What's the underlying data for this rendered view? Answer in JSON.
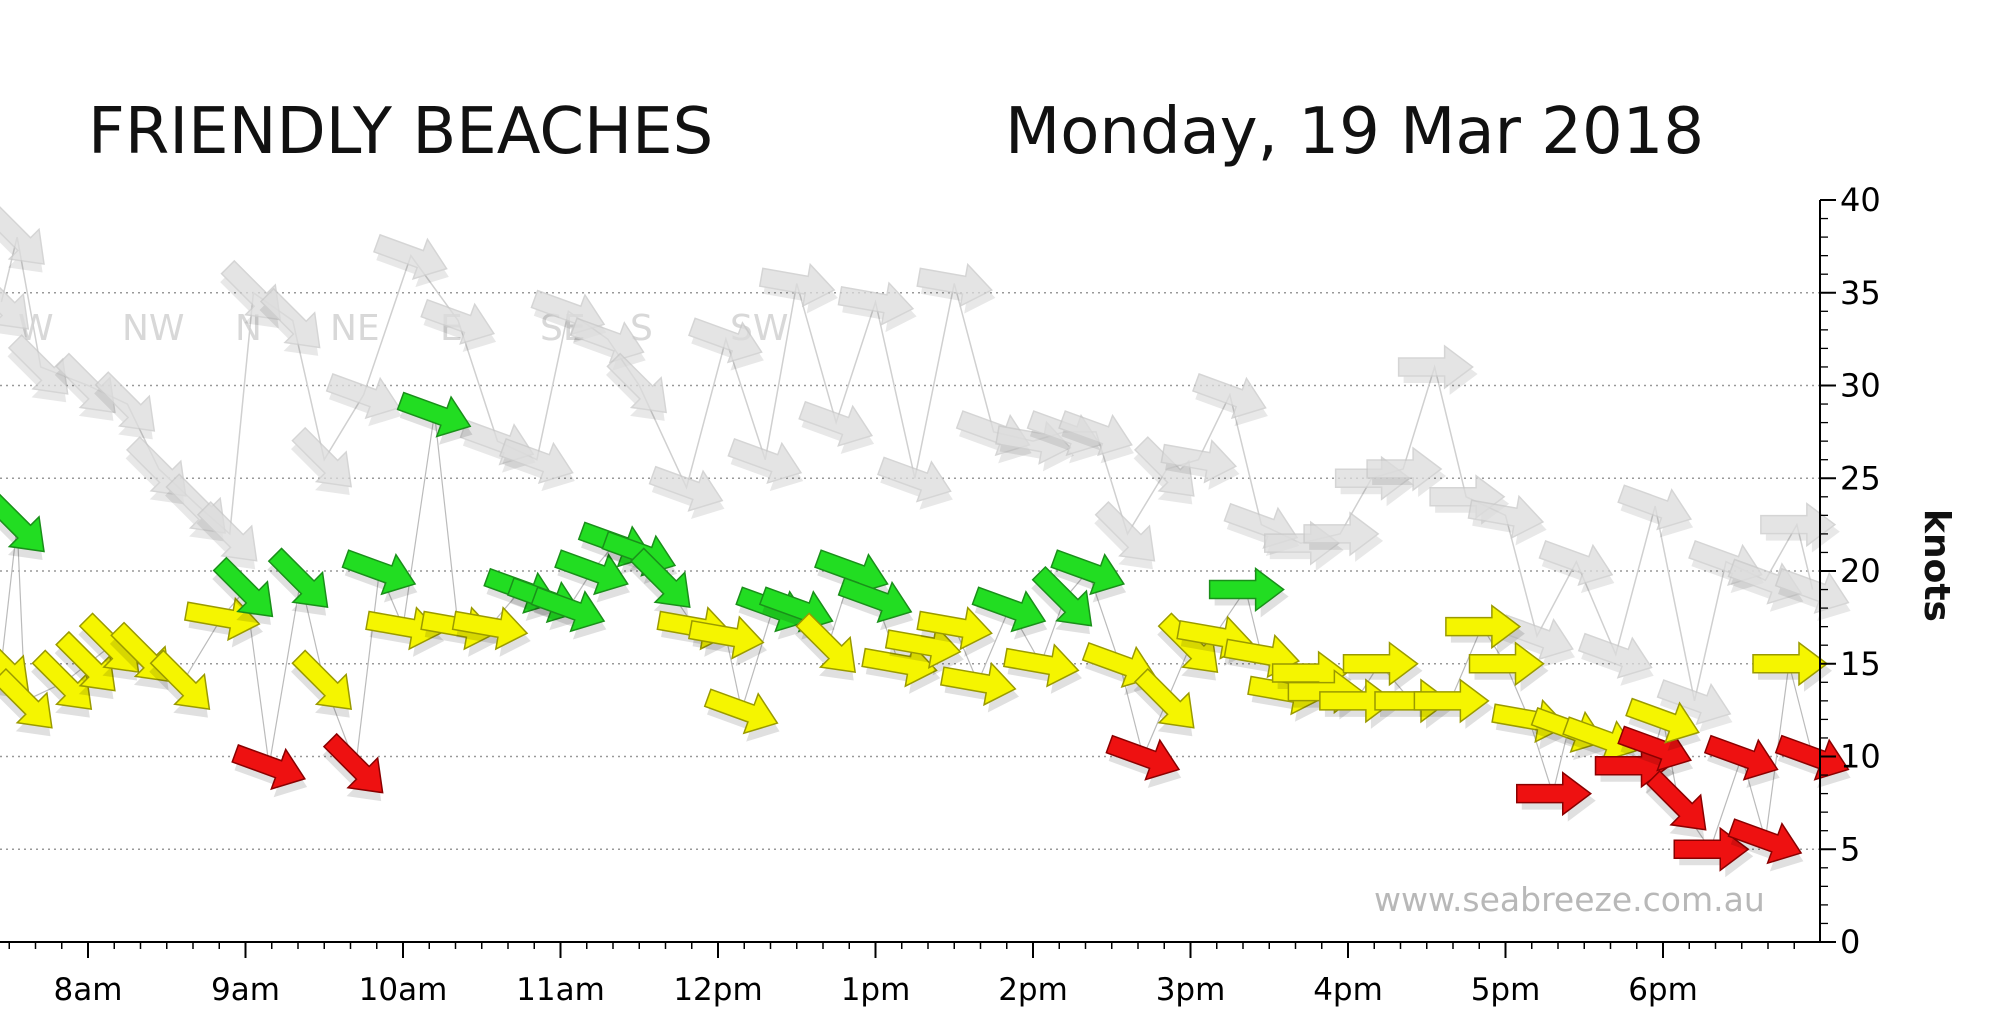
{
  "chart_data": {
    "type": "scatter",
    "title": "FRIENDLY BEACHES",
    "subtitle": "Monday, 19 Mar 2018",
    "ylabel": "knots",
    "xlabel": "",
    "watermark": "www.seabreeze.com.au",
    "ylim": [
      0,
      40
    ],
    "yticks": [
      0,
      5,
      10,
      15,
      20,
      25,
      30,
      35,
      40
    ],
    "y_axis_position": "right",
    "grid": true,
    "x_tick_labels": [
      "8am",
      "9am",
      "10am",
      "11am",
      "12pm",
      "1pm",
      "2pm",
      "3pm",
      "4pm",
      "5pm",
      "6pm"
    ],
    "x_tick_hours": [
      8,
      9,
      10,
      11,
      12,
      13,
      14,
      15,
      16,
      17,
      18
    ],
    "xlim_hours": [
      7.45,
      19.0
    ],
    "compass_labels": [
      "W",
      "NW",
      "N",
      "NE",
      "E",
      "SE",
      "S",
      "SW"
    ],
    "colors": {
      "green": "#22dd22",
      "yellow": "#f5f500",
      "red": "#ee1111",
      "gust": "#dcdcdc",
      "grid": "#999999"
    },
    "series": [
      {
        "name": "",
        "kind": "wind",
        "points": [
          {
            "t": 7.45,
            "v": 15.0,
            "dir": 135,
            "color": "yellow"
          },
          {
            "t": 7.55,
            "v": 22.5,
            "dir": 135,
            "color": "green"
          },
          {
            "t": 7.6,
            "v": 13.0,
            "dir": 135,
            "color": "yellow"
          },
          {
            "t": 7.85,
            "v": 14.0,
            "dir": 135,
            "color": "yellow"
          },
          {
            "t": 8.0,
            "v": 15.0,
            "dir": 135,
            "color": "yellow"
          },
          {
            "t": 8.15,
            "v": 16.0,
            "dir": 135,
            "color": "yellow"
          },
          {
            "t": 8.35,
            "v": 15.5,
            "dir": 135,
            "color": "yellow"
          },
          {
            "t": 8.6,
            "v": 14.0,
            "dir": 135,
            "color": "yellow"
          },
          {
            "t": 8.85,
            "v": 17.5,
            "dir": 100,
            "color": "yellow"
          },
          {
            "t": 9.0,
            "v": 19.0,
            "dir": 135,
            "color": "green"
          },
          {
            "t": 9.15,
            "v": 9.5,
            "dir": 110,
            "color": "red"
          },
          {
            "t": 9.35,
            "v": 19.5,
            "dir": 135,
            "color": "green"
          },
          {
            "t": 9.5,
            "v": 14.0,
            "dir": 135,
            "color": "yellow"
          },
          {
            "t": 9.7,
            "v": 9.5,
            "dir": 135,
            "color": "red"
          },
          {
            "t": 9.85,
            "v": 20.0,
            "dir": 110,
            "color": "green"
          },
          {
            "t": 10.0,
            "v": 17.0,
            "dir": 100,
            "color": "yellow"
          },
          {
            "t": 10.2,
            "v": 28.5,
            "dir": 110,
            "color": "green"
          },
          {
            "t": 10.35,
            "v": 17.0,
            "dir": 100,
            "color": "yellow"
          },
          {
            "t": 10.55,
            "v": 17.0,
            "dir": 100,
            "color": "yellow"
          },
          {
            "t": 10.75,
            "v": 19.0,
            "dir": 110,
            "color": "green"
          },
          {
            "t": 10.9,
            "v": 18.5,
            "dir": 110,
            "color": "green"
          },
          {
            "t": 11.05,
            "v": 18.0,
            "dir": 110,
            "color": "green"
          },
          {
            "t": 11.2,
            "v": 20.0,
            "dir": 110,
            "color": "green"
          },
          {
            "t": 11.35,
            "v": 21.5,
            "dir": 110,
            "color": "green"
          },
          {
            "t": 11.5,
            "v": 21.0,
            "dir": 110,
            "color": "green"
          },
          {
            "t": 11.65,
            "v": 19.5,
            "dir": 135,
            "color": "green"
          },
          {
            "t": 11.85,
            "v": 17.0,
            "dir": 100,
            "color": "yellow"
          },
          {
            "t": 12.05,
            "v": 16.5,
            "dir": 100,
            "color": "yellow"
          },
          {
            "t": 12.15,
            "v": 12.5,
            "dir": 110,
            "color": "yellow"
          },
          {
            "t": 12.35,
            "v": 18.0,
            "dir": 110,
            "color": "green"
          },
          {
            "t": 12.5,
            "v": 18.0,
            "dir": 110,
            "color": "green"
          },
          {
            "t": 12.7,
            "v": 16.0,
            "dir": 135,
            "color": "yellow"
          },
          {
            "t": 12.85,
            "v": 20.0,
            "dir": 110,
            "color": "green"
          },
          {
            "t": 13.0,
            "v": 18.5,
            "dir": 110,
            "color": "green"
          },
          {
            "t": 13.15,
            "v": 15.0,
            "dir": 100,
            "color": "yellow"
          },
          {
            "t": 13.3,
            "v": 16.0,
            "dir": 100,
            "color": "yellow"
          },
          {
            "t": 13.5,
            "v": 17.0,
            "dir": 100,
            "color": "yellow"
          },
          {
            "t": 13.65,
            "v": 14.0,
            "dir": 100,
            "color": "yellow"
          },
          {
            "t": 13.85,
            "v": 18.0,
            "dir": 110,
            "color": "green"
          },
          {
            "t": 14.05,
            "v": 15.0,
            "dir": 100,
            "color": "yellow"
          },
          {
            "t": 14.2,
            "v": 18.5,
            "dir": 135,
            "color": "green"
          },
          {
            "t": 14.35,
            "v": 20.0,
            "dir": 110,
            "color": "green"
          },
          {
            "t": 14.55,
            "v": 15.0,
            "dir": 110,
            "color": "yellow"
          },
          {
            "t": 14.7,
            "v": 10.0,
            "dir": 110,
            "color": "red"
          },
          {
            "t": 14.85,
            "v": 13.0,
            "dir": 135,
            "color": "yellow"
          },
          {
            "t": 15.0,
            "v": 16.0,
            "dir": 135,
            "color": "yellow"
          },
          {
            "t": 15.15,
            "v": 16.5,
            "dir": 100,
            "color": "yellow"
          },
          {
            "t": 15.35,
            "v": 19.0,
            "dir": 90,
            "color": "green"
          },
          {
            "t": 15.45,
            "v": 15.5,
            "dir": 100,
            "color": "yellow"
          },
          {
            "t": 15.6,
            "v": 13.5,
            "dir": 100,
            "color": "yellow"
          },
          {
            "t": 15.75,
            "v": 14.5,
            "dir": 90,
            "color": "yellow"
          },
          {
            "t": 15.85,
            "v": 13.5,
            "dir": 90,
            "color": "yellow"
          },
          {
            "t": 16.05,
            "v": 13.0,
            "dir": 90,
            "color": "yellow"
          },
          {
            "t": 16.2,
            "v": 15.0,
            "dir": 90,
            "color": "yellow"
          },
          {
            "t": 16.4,
            "v": 13.0,
            "dir": 90,
            "color": "yellow"
          },
          {
            "t": 16.65,
            "v": 13.0,
            "dir": 90,
            "color": "yellow"
          },
          {
            "t": 16.85,
            "v": 17.0,
            "dir": 90,
            "color": "yellow"
          },
          {
            "t": 17.0,
            "v": 15.0,
            "dir": 90,
            "color": "yellow"
          },
          {
            "t": 17.15,
            "v": 12.0,
            "dir": 100,
            "color": "yellow"
          },
          {
            "t": 17.3,
            "v": 8.0,
            "dir": 90,
            "color": "red"
          },
          {
            "t": 17.4,
            "v": 11.5,
            "dir": 110,
            "color": "yellow"
          },
          {
            "t": 17.6,
            "v": 11.0,
            "dir": 110,
            "color": "yellow"
          },
          {
            "t": 17.8,
            "v": 9.5,
            "dir": 90,
            "color": "red"
          },
          {
            "t": 17.95,
            "v": 10.5,
            "dir": 110,
            "color": "red"
          },
          {
            "t": 18.0,
            "v": 12.0,
            "dir": 110,
            "color": "yellow"
          },
          {
            "t": 18.1,
            "v": 7.5,
            "dir": 135,
            "color": "red"
          },
          {
            "t": 18.3,
            "v": 5.0,
            "dir": 90,
            "color": "red"
          },
          {
            "t": 18.5,
            "v": 10.0,
            "dir": 110,
            "color": "red"
          },
          {
            "t": 18.65,
            "v": 5.5,
            "dir": 110,
            "color": "red"
          },
          {
            "t": 18.8,
            "v": 15.0,
            "dir": 90,
            "color": "yellow"
          },
          {
            "t": 18.95,
            "v": 10.0,
            "dir": 110,
            "color": "red"
          }
        ]
      },
      {
        "name": "",
        "kind": "gust",
        "points": [
          {
            "t": 7.45,
            "v": 34.5,
            "dir": 135
          },
          {
            "t": 7.55,
            "v": 38.0,
            "dir": 135
          },
          {
            "t": 7.7,
            "v": 31.0,
            "dir": 135
          },
          {
            "t": 8.0,
            "v": 30.0,
            "dir": 135
          },
          {
            "t": 8.25,
            "v": 29.0,
            "dir": 135
          },
          {
            "t": 8.45,
            "v": 25.5,
            "dir": 135
          },
          {
            "t": 8.7,
            "v": 23.5,
            "dir": 135
          },
          {
            "t": 8.9,
            "v": 22.0,
            "dir": 135
          },
          {
            "t": 9.05,
            "v": 35.0,
            "dir": 135
          },
          {
            "t": 9.3,
            "v": 33.5,
            "dir": 135
          },
          {
            "t": 9.5,
            "v": 26.0,
            "dir": 135
          },
          {
            "t": 9.75,
            "v": 29.5,
            "dir": 110
          },
          {
            "t": 10.05,
            "v": 37.0,
            "dir": 110
          },
          {
            "t": 10.35,
            "v": 33.5,
            "dir": 110
          },
          {
            "t": 10.6,
            "v": 27.0,
            "dir": 110
          },
          {
            "t": 10.85,
            "v": 26.0,
            "dir": 110
          },
          {
            "t": 11.05,
            "v": 34.0,
            "dir": 110
          },
          {
            "t": 11.3,
            "v": 32.5,
            "dir": 110
          },
          {
            "t": 11.5,
            "v": 30.0,
            "dir": 135
          },
          {
            "t": 11.8,
            "v": 24.5,
            "dir": 110
          },
          {
            "t": 12.05,
            "v": 32.5,
            "dir": 110
          },
          {
            "t": 12.3,
            "v": 26.0,
            "dir": 110
          },
          {
            "t": 12.5,
            "v": 35.5,
            "dir": 100
          },
          {
            "t": 12.75,
            "v": 28.0,
            "dir": 110
          },
          {
            "t": 13.0,
            "v": 34.5,
            "dir": 100
          },
          {
            "t": 13.25,
            "v": 25.0,
            "dir": 110
          },
          {
            "t": 13.5,
            "v": 35.5,
            "dir": 100
          },
          {
            "t": 13.75,
            "v": 27.5,
            "dir": 110
          },
          {
            "t": 14.0,
            "v": 27.0,
            "dir": 100
          },
          {
            "t": 14.2,
            "v": 27.5,
            "dir": 110
          },
          {
            "t": 14.4,
            "v": 27.5,
            "dir": 110
          },
          {
            "t": 14.6,
            "v": 22.0,
            "dir": 135
          },
          {
            "t": 14.85,
            "v": 25.5,
            "dir": 135
          },
          {
            "t": 15.05,
            "v": 26.0,
            "dir": 100
          },
          {
            "t": 15.25,
            "v": 29.5,
            "dir": 110
          },
          {
            "t": 15.45,
            "v": 22.5,
            "dir": 110
          },
          {
            "t": 15.7,
            "v": 21.5,
            "dir": 90
          },
          {
            "t": 15.95,
            "v": 22.0,
            "dir": 90
          },
          {
            "t": 16.15,
            "v": 25.0,
            "dir": 90
          },
          {
            "t": 16.35,
            "v": 25.5,
            "dir": 90
          },
          {
            "t": 16.55,
            "v": 31.0,
            "dir": 90
          },
          {
            "t": 16.75,
            "v": 24.0,
            "dir": 90
          },
          {
            "t": 17.0,
            "v": 23.0,
            "dir": 100
          },
          {
            "t": 17.2,
            "v": 16.5,
            "dir": 110
          },
          {
            "t": 17.45,
            "v": 20.5,
            "dir": 110
          },
          {
            "t": 17.7,
            "v": 15.5,
            "dir": 110
          },
          {
            "t": 17.95,
            "v": 23.5,
            "dir": 110
          },
          {
            "t": 18.2,
            "v": 13.0,
            "dir": 110
          },
          {
            "t": 18.4,
            "v": 20.5,
            "dir": 110
          },
          {
            "t": 18.65,
            "v": 19.5,
            "dir": 110
          },
          {
            "t": 18.85,
            "v": 22.5,
            "dir": 90
          },
          {
            "t": 18.95,
            "v": 19.0,
            "dir": 110
          }
        ]
      }
    ]
  }
}
